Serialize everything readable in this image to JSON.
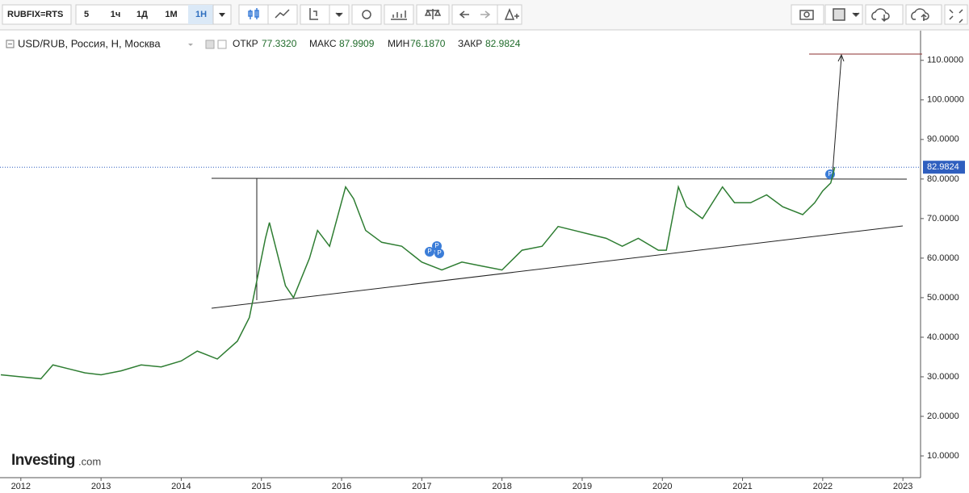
{
  "toolbar": {
    "symbol": "RUBFIX=RTS",
    "intervals": [
      "5",
      "1ч",
      "1Д",
      "1М",
      "1Н"
    ]
  },
  "header": {
    "title": "USD/RUB, Россия, Н, Москва",
    "open_label": "ОТКР",
    "open": "77.3320",
    "high_label": "МАКС",
    "high": "87.9909",
    "low_label": "МИН",
    "low": "76.1870",
    "close_label": "ЗАКР",
    "close": "82.9824",
    "event_marker": "P"
  },
  "brand": {
    "name": "Investing",
    "suffix": ".com"
  },
  "chart_data": {
    "type": "line",
    "color": "#2e7d32",
    "x": [
      2011.75,
      2012.0,
      2012.25,
      2012.4,
      2012.6,
      2012.8,
      2013.0,
      2013.25,
      2013.5,
      2013.75,
      2014.0,
      2014.2,
      2014.45,
      2014.7,
      2014.85,
      2014.95,
      2015.05,
      2015.1,
      2015.3,
      2015.4,
      2015.6,
      2015.7,
      2015.85,
      2016.05,
      2016.15,
      2016.3,
      2016.5,
      2016.75,
      2017.0,
      2017.25,
      2017.5,
      2017.75,
      2018.0,
      2018.25,
      2018.5,
      2018.7,
      2018.9,
      2019.1,
      2019.3,
      2019.5,
      2019.7,
      2019.95,
      2020.05,
      2020.2,
      2020.3,
      2020.5,
      2020.75,
      2020.9,
      2021.1,
      2021.3,
      2021.5,
      2021.75,
      2021.9,
      2022.0,
      2022.1,
      2022.15
    ],
    "values": [
      30.5,
      30,
      29.5,
      33,
      32,
      31,
      30.5,
      31.5,
      33,
      32.5,
      34,
      36.5,
      34.5,
      39,
      45,
      55,
      65,
      69,
      53,
      50,
      60,
      67,
      63,
      78,
      75,
      67,
      64,
      63,
      59,
      57,
      59,
      58,
      57,
      62,
      63,
      68,
      67,
      66,
      65,
      63,
      65,
      62,
      62,
      78,
      73,
      70,
      78,
      74,
      74,
      76,
      73,
      71,
      74,
      77,
      79,
      83
    ],
    "xlim": [
      2011.74,
      2023.22
    ],
    "ylim": [
      4.5,
      117.5
    ],
    "xticks": [
      2012,
      2013,
      2014,
      2015,
      2016,
      2017,
      2018,
      2019,
      2020,
      2021,
      2022,
      2023
    ],
    "yticks": [
      {
        "value": 10,
        "label": "10.0000"
      },
      {
        "value": 20,
        "label": "20.0000"
      },
      {
        "value": 30,
        "label": "30.0000"
      },
      {
        "value": 40,
        "label": "40.0000"
      },
      {
        "value": 50,
        "label": "50.0000"
      },
      {
        "value": 60,
        "label": "60.0000"
      },
      {
        "value": 70,
        "label": "70.0000"
      },
      {
        "value": 80,
        "label": "80.0000"
      },
      {
        "value": 90,
        "label": "90.0000"
      },
      {
        "value": 100,
        "label": "100.0000"
      },
      {
        "value": 110,
        "label": "110.0000"
      }
    ],
    "last_price": 82.9824,
    "last_price_color": "#2f5fbf"
  }
}
